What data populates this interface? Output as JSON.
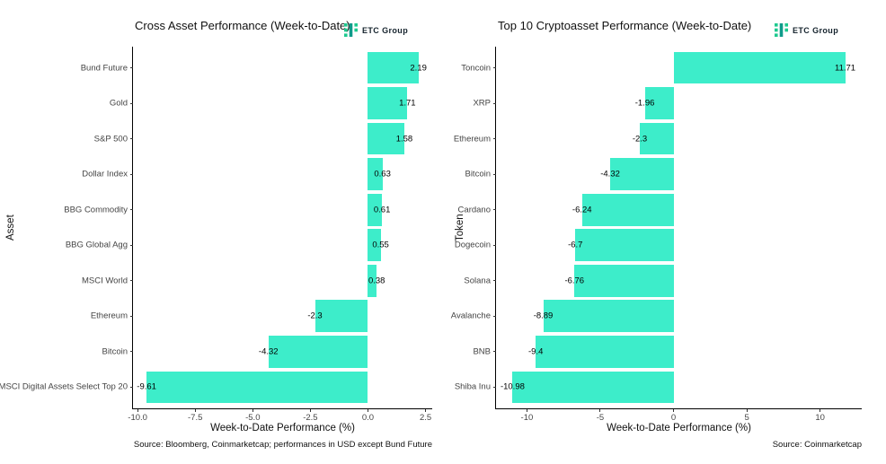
{
  "brand": {
    "name": "ETC Group"
  },
  "colors": {
    "bar": "#3DEDCA",
    "axis": "#000000",
    "logo_green": "#1EC98F",
    "logo_teal": "#0F9B8A"
  },
  "chart_data": [
    {
      "type": "bar",
      "orientation": "horizontal",
      "title": "Cross Asset Performance (Week-to-Date)",
      "ylabel": "Asset",
      "xlabel": "Week-to-Date Performance (%)",
      "caption": "Source: Bloomberg, Coinmarketcap; performances in USD except Bund Future",
      "legend": "none",
      "grid": false,
      "categories": [
        "Bund Future",
        "Gold",
        "S&P 500",
        "Dollar Index",
        "BBG Commodity",
        "BBG Global Agg",
        "MSCI World",
        "Ethereum",
        "Bitcoin",
        "MSCI Digital Assets Select Top 20"
      ],
      "values": [
        2.19,
        1.71,
        1.58,
        0.63,
        0.61,
        0.55,
        0.38,
        -2.3,
        -4.32,
        -9.61
      ],
      "value_labels": [
        "2.19",
        "1.71",
        "1.58",
        "0.63",
        "0.61",
        "0.55",
        "0.38",
        "-2.3",
        "-4.32",
        "-9.61"
      ],
      "xlim": [
        -10.2,
        2.79
      ],
      "xticks": [
        -10.0,
        -7.5,
        -5.0,
        -2.5,
        0.0,
        2.5
      ],
      "xtick_labels": [
        "-10.0",
        "-7.5",
        "-5.0",
        "-2.5",
        "0.0",
        "2.5"
      ]
    },
    {
      "type": "bar",
      "orientation": "horizontal",
      "title": "Top 10 Cryptoasset Performance (Week-to-Date)",
      "ylabel": "Token",
      "xlabel": "Week-to-Date Performance (%)",
      "caption": "Source: Coinmarketcap",
      "legend": "none",
      "grid": false,
      "categories": [
        "Toncoin",
        "XRP",
        "Ethereum",
        "Bitcoin",
        "Cardano",
        "Dogecoin",
        "Solana",
        "Avalanche",
        "BNB",
        "Shiba Inu"
      ],
      "values": [
        11.71,
        -1.96,
        -2.3,
        -4.32,
        -6.24,
        -6.7,
        -6.76,
        -8.89,
        -9.4,
        -10.98
      ],
      "value_labels": [
        "11.71",
        "-1.96",
        "-2.3",
        "-4.32",
        "-6.24",
        "-6.7",
        "-6.76",
        "-8.89",
        "-9.4",
        "-10.98"
      ],
      "xlim": [
        -12.11,
        12.84
      ],
      "xticks": [
        -10,
        -5,
        0,
        5,
        10
      ],
      "xtick_labels": [
        "-10",
        "-5",
        "0",
        "5",
        "10"
      ]
    }
  ]
}
